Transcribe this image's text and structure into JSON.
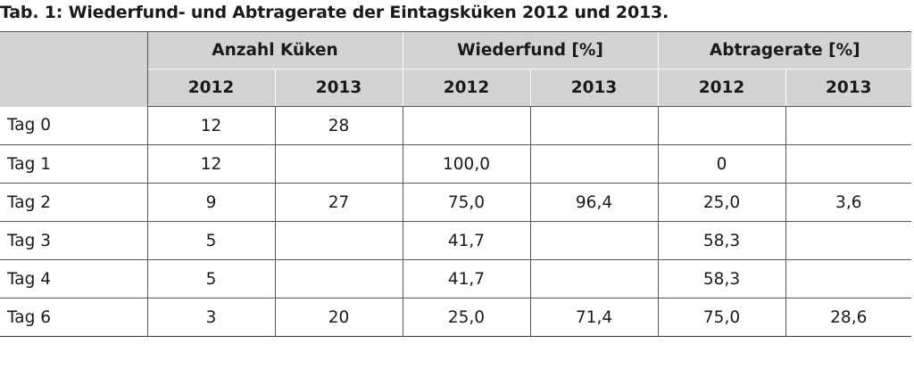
{
  "caption": "Tab.  1: Wiederfund- und Abtragerate der Eintagsküken 2012 und 2013.",
  "header": {
    "groups": [
      "Anzahl Küken",
      "Wiederfund [%]",
      "Abtragerate [%]"
    ],
    "years": [
      "2012",
      "2013",
      "2012",
      "2013",
      "2012",
      "2013"
    ]
  },
  "rows": [
    {
      "label": "Tag 0",
      "cells": [
        "12",
        "28",
        "",
        "",
        "",
        ""
      ]
    },
    {
      "label": "Tag 1",
      "cells": [
        "12",
        "",
        "100,0",
        "",
        "0",
        ""
      ]
    },
    {
      "label": "Tag 2",
      "cells": [
        "9",
        "27",
        "75,0",
        "96,4",
        "25,0",
        "3,6"
      ]
    },
    {
      "label": "Tag 3",
      "cells": [
        "5",
        "",
        "41,7",
        "",
        "58,3",
        ""
      ]
    },
    {
      "label": "Tag 4",
      "cells": [
        "5",
        "",
        "41,7",
        "",
        "58,3",
        ""
      ]
    },
    {
      "label": "Tag 6",
      "cells": [
        "3",
        "20",
        "25,0",
        "71,4",
        "75,0",
        "28,6"
      ]
    }
  ]
}
